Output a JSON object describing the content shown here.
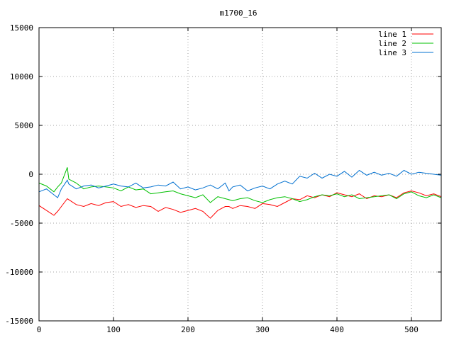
{
  "chart_data": {
    "type": "line",
    "title": "m1700_16",
    "xlabel": "",
    "ylabel": "",
    "xlim": [
      0,
      540
    ],
    "ylim": [
      -15000,
      15000
    ],
    "x_ticks": [
      0,
      100,
      200,
      300,
      400,
      500
    ],
    "y_ticks": [
      -15000,
      -10000,
      -5000,
      0,
      5000,
      10000,
      15000
    ],
    "grid": true,
    "legend_position": "top-right",
    "x": [
      0,
      10,
      20,
      25,
      30,
      38,
      40,
      50,
      60,
      70,
      80,
      90,
      100,
      110,
      120,
      130,
      140,
      150,
      160,
      170,
      180,
      190,
      200,
      210,
      220,
      230,
      240,
      250,
      255,
      260,
      270,
      280,
      290,
      300,
      310,
      320,
      330,
      340,
      350,
      360,
      370,
      380,
      390,
      400,
      410,
      420,
      430,
      440,
      450,
      460,
      470,
      480,
      490,
      500,
      510,
      520,
      530,
      540
    ],
    "series": [
      {
        "name": "line 1",
        "color": "#ff0000",
        "values": [
          -3200,
          -3700,
          -4200,
          -3800,
          -3300,
          -2500,
          -2600,
          -3100,
          -3300,
          -3000,
          -3200,
          -2900,
          -2800,
          -3300,
          -3100,
          -3400,
          -3200,
          -3300,
          -3800,
          -3400,
          -3600,
          -3900,
          -3700,
          -3500,
          -3800,
          -4500,
          -3700,
          -3300,
          -3300,
          -3500,
          -3200,
          -3300,
          -3500,
          -3000,
          -3100,
          -3300,
          -2900,
          -2500,
          -2600,
          -2200,
          -2400,
          -2100,
          -2300,
          -1900,
          -2100,
          -2300,
          -2000,
          -2500,
          -2200,
          -2300,
          -2100,
          -2400,
          -1900,
          -1700,
          -1900,
          -2200,
          -2000,
          -2300
        ]
      },
      {
        "name": "line 2",
        "color": "#00c000",
        "values": [
          -900,
          -1200,
          -1800,
          -1300,
          -900,
          700,
          -500,
          -900,
          -1500,
          -1300,
          -1200,
          -1300,
          -1400,
          -1700,
          -1300,
          -1600,
          -1500,
          -2000,
          -1900,
          -1800,
          -1700,
          -2000,
          -2200,
          -2400,
          -2100,
          -2900,
          -2300,
          -2500,
          -2600,
          -2700,
          -2500,
          -2400,
          -2700,
          -2900,
          -2600,
          -2400,
          -2300,
          -2500,
          -2800,
          -2600,
          -2300,
          -2100,
          -2200,
          -2000,
          -2300,
          -2100,
          -2500,
          -2400,
          -2300,
          -2200,
          -2100,
          -2500,
          -2000,
          -1800,
          -2200,
          -2400,
          -2100,
          -2400
        ]
      },
      {
        "name": "line 3",
        "color": "#0070d0",
        "values": [
          -1800,
          -1500,
          -2100,
          -2400,
          -1500,
          -600,
          -1000,
          -1500,
          -1200,
          -1100,
          -1400,
          -1200,
          -1000,
          -1200,
          -1300,
          -900,
          -1400,
          -1300,
          -1100,
          -1200,
          -800,
          -1500,
          -1300,
          -1600,
          -1400,
          -1100,
          -1500,
          -900,
          -1700,
          -1300,
          -1100,
          -1700,
          -1400,
          -1200,
          -1500,
          -1000,
          -700,
          -1000,
          -200,
          -400,
          100,
          -400,
          0,
          -200,
          300,
          -300,
          400,
          -100,
          200,
          -100,
          100,
          -200,
          400,
          0,
          200,
          100,
          0,
          -100
        ]
      }
    ]
  }
}
